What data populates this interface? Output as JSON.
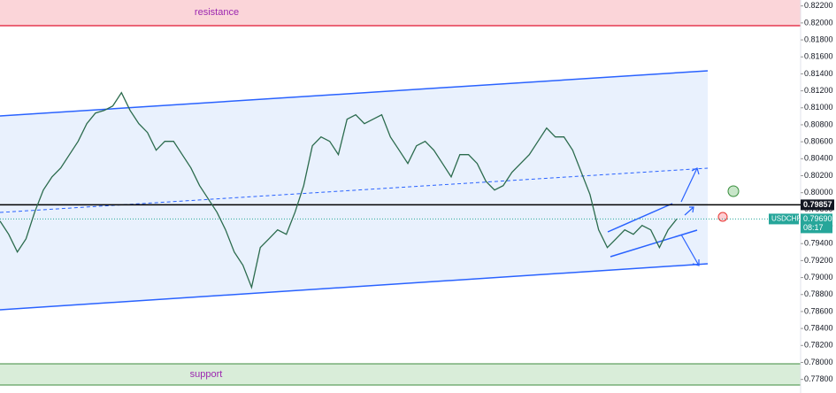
{
  "chart_data": {
    "type": "line",
    "color": "#2b6b4d",
    "values": [
      0.79666,
      0.7951,
      0.79301,
      0.79457,
      0.7977,
      0.80031,
      0.80187,
      0.80292,
      0.80448,
      0.80605,
      0.80813,
      0.80938,
      0.80969,
      0.81022,
      0.81178,
      0.80969,
      0.80813,
      0.80709,
      0.805,
      0.80605,
      0.80605,
      0.80448,
      0.80292,
      0.80083,
      0.79927,
      0.7977,
      0.79562,
      0.79301,
      0.79145,
      0.78884,
      0.79353,
      0.79457,
      0.79562,
      0.7951,
      0.7977,
      0.80083,
      0.80552,
      0.80657,
      0.80605,
      0.80448,
      0.80865,
      0.80917,
      0.80813,
      0.80865,
      0.80917,
      0.80657,
      0.805,
      0.80344,
      0.80552,
      0.80605,
      0.805,
      0.80344,
      0.80187,
      0.80448,
      0.80448,
      0.80344,
      0.80135,
      0.80031,
      0.80083,
      0.8024,
      0.80344,
      0.80448,
      0.80605,
      0.80761,
      0.80657,
      0.80657,
      0.805,
      0.8024,
      0.79979,
      0.79562,
      0.79353,
      0.79457,
      0.79562,
      0.7951,
      0.79614,
      0.79562,
      0.79353,
      0.79562,
      0.7969
    ],
    "ylim": [
      0.7764,
      0.8227
    ],
    "yticks": [
      {
        "value": 0.822,
        "label": "0.82200"
      },
      {
        "value": 0.82,
        "label": "0.82000"
      },
      {
        "value": 0.818,
        "label": "0.81800"
      },
      {
        "value": 0.816,
        "label": "0.81600"
      },
      {
        "value": 0.814,
        "label": "0.81400"
      },
      {
        "value": 0.812,
        "label": "0.81200"
      },
      {
        "value": 0.81,
        "label": "0.81000"
      },
      {
        "value": 0.808,
        "label": "0.80800"
      },
      {
        "value": 0.806,
        "label": "0.80600"
      },
      {
        "value": 0.804,
        "label": "0.80400"
      },
      {
        "value": 0.802,
        "label": "0.80200"
      },
      {
        "value": 0.8,
        "label": "0.80000"
      },
      {
        "value": 0.798,
        "label": "0.79800"
      },
      {
        "value": 0.796,
        "label": "0.79600"
      },
      {
        "value": 0.794,
        "label": "0.79400"
      },
      {
        "value": 0.792,
        "label": "0.79200"
      },
      {
        "value": 0.79,
        "label": "0.79000"
      },
      {
        "value": 0.788,
        "label": "0.78800"
      },
      {
        "value": 0.786,
        "label": "0.78600"
      },
      {
        "value": 0.784,
        "label": "0.78400"
      },
      {
        "value": 0.782,
        "label": "0.78200"
      },
      {
        "value": 0.78,
        "label": "0.78000"
      },
      {
        "value": 0.778,
        "label": "0.77800"
      }
    ],
    "level": 0.79857,
    "last_price": {
      "symbol": "USDCHF",
      "value": 0.7969,
      "label": "0.79690",
      "countdown": "08:17"
    },
    "annotations": [
      "resistance",
      "support"
    ]
  }
}
